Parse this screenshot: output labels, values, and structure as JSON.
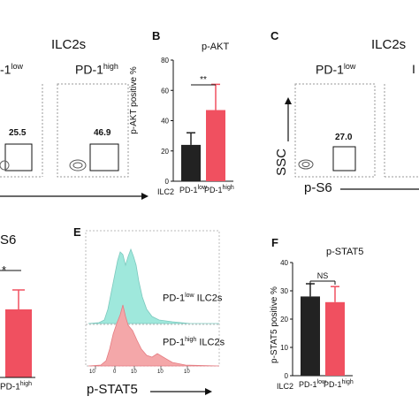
{
  "panels": {
    "A": {
      "title": "ILC2s",
      "low_label": "-1",
      "low_sup": "low",
      "high_label": "PD-1",
      "high_sup": "high",
      "low_value": "25.5",
      "high_value": "46.9"
    },
    "B": {
      "letter": "B",
      "title": "p-AKT",
      "significance": "**",
      "ylabel": "p-AKT positive %",
      "cat_ilc2": "ILC2",
      "cat_low": "PD-1",
      "cat_low_sup": "low",
      "cat_high": "PD-1",
      "cat_high_sup": "high"
    },
    "C": {
      "letter": "C",
      "title": "ILC2s",
      "low_label": "PD-1",
      "low_sup": "low",
      "cut_label": "I",
      "yaxis": "SSC",
      "xaxis": "p-S6",
      "value": "27.0"
    },
    "D": {
      "title": "S6",
      "significance": "*",
      "cat_label": "PD-1",
      "cat_sup": "high"
    },
    "E": {
      "letter": "E",
      "low_label": "PD-1",
      "low_sup": "low",
      "low_suffix": " ILC2s",
      "high_label": "PD-1",
      "high_sup": "high",
      "high_suffix": " ILC2s",
      "xaxis": "p-STAT5",
      "ticks": [
        "10",
        "0",
        "10",
        "10",
        "10"
      ]
    },
    "F": {
      "letter": "F",
      "title": "p-STAT5",
      "significance": "NS",
      "ylabel": "p-STAT5 positive %",
      "cat_ilc2": "ILC2",
      "cat_low": "PD-1",
      "cat_low_sup": "low",
      "cat_high": "PD-1",
      "cat_high_sup": "high"
    }
  },
  "colors": {
    "low": "#222222",
    "high": "#f05060",
    "teal": "#9fe8dc",
    "pink": "#f4a7a9"
  },
  "chart_data": [
    {
      "type": "bar",
      "title": "p-AKT",
      "categories": [
        "PD-1low",
        "PD-1high"
      ],
      "values": [
        24,
        47
      ],
      "errors": [
        8,
        17
      ],
      "ylabel": "p-AKT positive %",
      "ylim": [
        0,
        80
      ],
      "yticks": [
        0,
        20,
        40,
        60,
        80
      ]
    },
    {
      "type": "bar",
      "title": "p-STAT5",
      "categories": [
        "PD-1low",
        "PD-1high"
      ],
      "values": [
        28,
        26
      ],
      "errors": [
        4.5,
        5.5
      ],
      "ylabel": "p-STAT5 positive %",
      "ylim": [
        0,
        40
      ],
      "yticks": [
        0,
        10,
        20,
        30,
        40
      ]
    }
  ]
}
